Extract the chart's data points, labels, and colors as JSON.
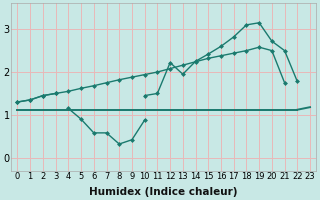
{
  "x_humidex": [
    0,
    1,
    2,
    3,
    4,
    5,
    6,
    7,
    8,
    9,
    10,
    11,
    12,
    13,
    14,
    15,
    16,
    17,
    18,
    19,
    20,
    21,
    22,
    23
  ],
  "line_initial": [
    1.3,
    1.35,
    1.45,
    1.5,
    null,
    null,
    null,
    null,
    null,
    null,
    null,
    null,
    null,
    null,
    null,
    null,
    null,
    null,
    null,
    null,
    null,
    null,
    null,
    null
  ],
  "line_jagged": [
    null,
    null,
    null,
    null,
    1.15,
    0.9,
    0.58,
    0.58,
    0.32,
    0.42,
    0.88,
    null,
    null,
    null,
    null,
    null,
    null,
    null,
    null,
    null,
    null,
    null,
    null,
    null
  ],
  "line_lower": [
    1.3,
    1.35,
    1.45,
    1.5,
    1.55,
    1.62,
    1.68,
    1.75,
    1.82,
    1.88,
    1.94,
    2.0,
    2.08,
    2.16,
    2.24,
    2.32,
    2.38,
    2.44,
    2.5,
    2.58,
    2.5,
    1.75,
    null,
    null
  ],
  "line_upper": [
    null,
    null,
    null,
    null,
    null,
    null,
    null,
    null,
    null,
    null,
    1.45,
    1.5,
    2.22,
    1.95,
    2.25,
    2.42,
    2.6,
    2.82,
    3.1,
    3.15,
    2.72,
    2.5,
    1.78,
    null
  ],
  "line_flat": [
    1.12,
    1.12,
    1.12,
    1.12,
    1.12,
    1.12,
    1.12,
    1.12,
    1.12,
    1.12,
    1.12,
    1.12,
    1.12,
    1.12,
    1.12,
    1.12,
    1.12,
    1.12,
    1.12,
    1.12,
    1.12,
    1.12,
    1.12,
    null
  ],
  "line_end": [
    null,
    null,
    null,
    null,
    null,
    null,
    null,
    null,
    null,
    null,
    null,
    null,
    null,
    null,
    null,
    null,
    null,
    null,
    null,
    null,
    null,
    null,
    1.12,
    1.18
  ],
  "bg_color": "#c8e8e5",
  "line_color": "#1a7a6e",
  "grid_color": "#e8b8b8",
  "xlabel": "Humidex (Indice chaleur)",
  "ylim": [
    -0.3,
    3.6
  ],
  "xlim": [
    -0.5,
    23.5
  ],
  "yticks": [
    0,
    1,
    2,
    3
  ],
  "xticks": [
    0,
    1,
    2,
    3,
    4,
    5,
    6,
    7,
    8,
    9,
    10,
    11,
    12,
    13,
    14,
    15,
    16,
    17,
    18,
    19,
    20,
    21,
    22,
    23
  ],
  "xlabel_fontsize": 7.5,
  "tick_fontsize": 6,
  "marker_size": 2.5,
  "line_width": 1.0
}
